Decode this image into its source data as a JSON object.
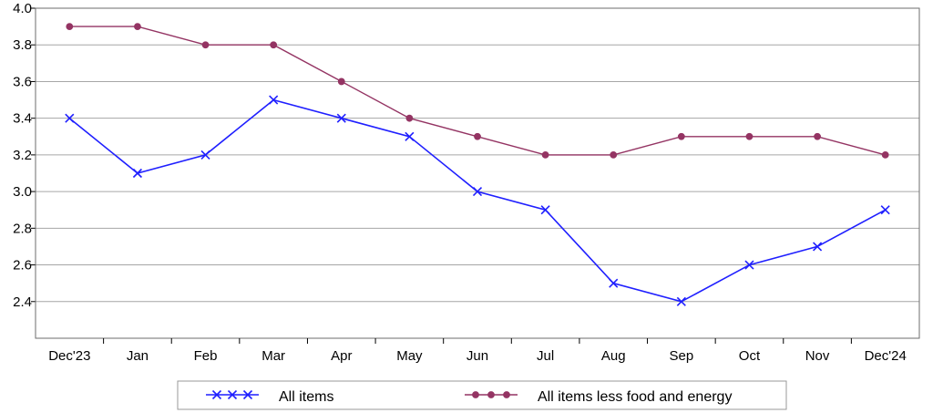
{
  "chart_data": {
    "type": "line",
    "categories": [
      "Dec'23",
      "Jan",
      "Feb",
      "Mar",
      "Apr",
      "May",
      "Jun",
      "Jul",
      "Aug",
      "Sep",
      "Oct",
      "Nov",
      "Dec'24"
    ],
    "ylim": [
      2.2,
      4.0
    ],
    "yticks": [
      "2.4",
      "2.6",
      "2.8",
      "3.0",
      "3.2",
      "3.4",
      "3.6",
      "3.8",
      "4.0"
    ],
    "grid": true,
    "legend_position": "bottom",
    "series": [
      {
        "name": "All items",
        "color": "#1f1fff",
        "marker": "x",
        "values": [
          3.4,
          3.1,
          3.2,
          3.5,
          3.4,
          3.3,
          3.0,
          2.9,
          2.5,
          2.4,
          2.6,
          2.7,
          2.9
        ]
      },
      {
        "name": "All items less food and energy",
        "color": "#943463",
        "marker": "circle",
        "values": [
          3.9,
          3.9,
          3.8,
          3.8,
          3.6,
          3.4,
          3.3,
          3.2,
          3.2,
          3.3,
          3.3,
          3.3,
          3.2
        ]
      }
    ]
  }
}
